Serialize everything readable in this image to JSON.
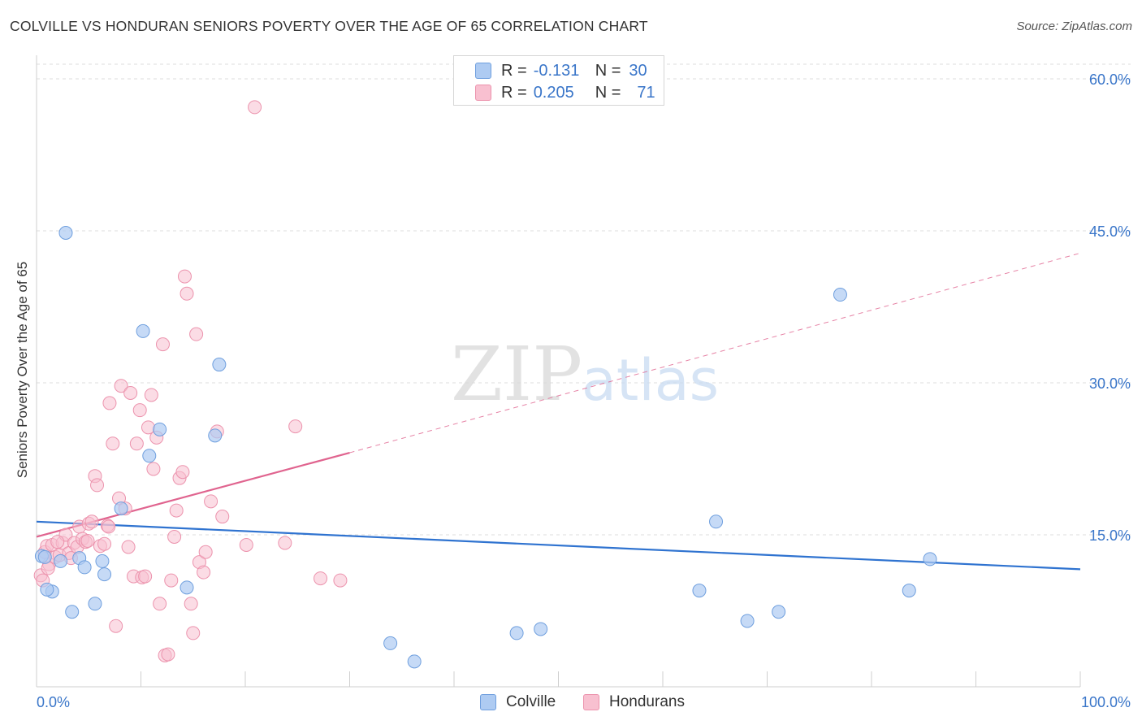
{
  "header": {
    "title": "COLVILLE VS HONDURAN SENIORS POVERTY OVER THE AGE OF 65 CORRELATION CHART",
    "source": "Source: ZipAtlas.com"
  },
  "legend": {
    "rows": [
      {
        "r_label": "R =",
        "r_value": "-0.131",
        "n_label": "N =",
        "n_value": "30"
      },
      {
        "r_label": "R =",
        "r_value": "0.205",
        "n_label": "N =",
        "n_value": "71"
      }
    ]
  },
  "bottom_legend": {
    "items": [
      {
        "label": "Colville"
      },
      {
        "label": "Hondurans"
      }
    ]
  },
  "watermark": {
    "part1": "ZIP",
    "part2": "atlas"
  },
  "colors": {
    "colville_fill": "#aecbf2",
    "colville_stroke": "#6f9fde",
    "colville_line": "#2f73d0",
    "hondurans_fill": "#f8c0d0",
    "hondurans_stroke": "#ec93ad",
    "hondurans_line": "#e0648f",
    "tick_text": "#3a76c9"
  },
  "chart_data": {
    "type": "scatter",
    "title": "COLVILLE VS HONDURAN SENIORS POVERTY OVER THE AGE OF 65 CORRELATION CHART",
    "xlabel": "",
    "ylabel": "Seniors Poverty Over the Age of 65",
    "xlim": [
      0,
      100
    ],
    "ylim": [
      0,
      60
    ],
    "x_tick_labels": [
      "0.0%",
      "100.0%"
    ],
    "y_ticks": [
      15,
      30,
      45,
      60
    ],
    "y_tick_labels": [
      "15.0%",
      "30.0%",
      "45.0%",
      "60.0%"
    ],
    "grid": true,
    "legend_position": "top-center",
    "series": [
      {
        "name": "Colville",
        "R": -0.131,
        "N": 30,
        "trend": {
          "x": [
            0,
            100
          ],
          "y": [
            16.3,
            11.6
          ],
          "dashed_extension": false
        },
        "points": [
          [
            0.5,
            12.9
          ],
          [
            2.8,
            44.8
          ],
          [
            1.5,
            9.4
          ],
          [
            2.3,
            12.4
          ],
          [
            3.4,
            7.4
          ],
          [
            4.1,
            12.7
          ],
          [
            5.6,
            8.2
          ],
          [
            6.3,
            12.4
          ],
          [
            4.6,
            11.8
          ],
          [
            6.5,
            11.1
          ],
          [
            8.1,
            17.6
          ],
          [
            10.2,
            35.1
          ],
          [
            10.8,
            22.8
          ],
          [
            11.8,
            25.4
          ],
          [
            14.4,
            9.8
          ],
          [
            17.1,
            24.8
          ],
          [
            17.5,
            31.8
          ],
          [
            33.9,
            4.3
          ],
          [
            36.2,
            2.5
          ],
          [
            46.0,
            5.3
          ],
          [
            48.3,
            5.7
          ],
          [
            63.5,
            9.5
          ],
          [
            65.1,
            16.3
          ],
          [
            68.1,
            6.5
          ],
          [
            71.1,
            7.4
          ],
          [
            77.0,
            38.7
          ],
          [
            83.6,
            9.5
          ],
          [
            85.6,
            12.6
          ],
          [
            0.8,
            12.8
          ],
          [
            1.0,
            9.6
          ]
        ]
      },
      {
        "name": "Hondurans",
        "R": 0.205,
        "N": 71,
        "trend": {
          "x": [
            0,
            30
          ],
          "y": [
            14.8,
            23.1
          ],
          "dashed_to": [
            100,
            42.8
          ]
        },
        "points": [
          [
            0.4,
            11.0
          ],
          [
            0.6,
            10.5
          ],
          [
            0.8,
            13.3
          ],
          [
            1.0,
            13.9
          ],
          [
            1.2,
            12.1
          ],
          [
            1.5,
            14.0
          ],
          [
            1.8,
            12.8
          ],
          [
            2.2,
            13.0
          ],
          [
            2.5,
            14.2
          ],
          [
            2.8,
            15.0
          ],
          [
            3.1,
            13.2
          ],
          [
            3.3,
            12.7
          ],
          [
            3.6,
            14.2
          ],
          [
            3.9,
            13.8
          ],
          [
            4.1,
            15.8
          ],
          [
            4.4,
            14.6
          ],
          [
            4.7,
            14.3
          ],
          [
            5.0,
            16.1
          ],
          [
            5.3,
            16.3
          ],
          [
            5.6,
            20.8
          ],
          [
            5.8,
            19.9
          ],
          [
            6.1,
            13.9
          ],
          [
            6.5,
            14.1
          ],
          [
            6.8,
            15.9
          ],
          [
            7.0,
            28.0
          ],
          [
            7.3,
            24.0
          ],
          [
            7.6,
            6.0
          ],
          [
            7.9,
            18.6
          ],
          [
            8.1,
            29.7
          ],
          [
            8.5,
            17.6
          ],
          [
            8.8,
            13.8
          ],
          [
            9.0,
            29.0
          ],
          [
            9.3,
            10.9
          ],
          [
            9.6,
            24.0
          ],
          [
            9.9,
            27.3
          ],
          [
            10.1,
            10.8
          ],
          [
            10.4,
            10.9
          ],
          [
            10.7,
            25.6
          ],
          [
            11.0,
            28.8
          ],
          [
            11.2,
            21.5
          ],
          [
            11.5,
            24.6
          ],
          [
            11.8,
            8.2
          ],
          [
            12.1,
            33.8
          ],
          [
            12.3,
            3.1
          ],
          [
            12.6,
            3.2
          ],
          [
            12.9,
            10.5
          ],
          [
            13.2,
            14.8
          ],
          [
            13.4,
            17.4
          ],
          [
            13.7,
            20.6
          ],
          [
            14.0,
            21.2
          ],
          [
            14.2,
            40.5
          ],
          [
            14.4,
            38.8
          ],
          [
            14.8,
            8.2
          ],
          [
            15.0,
            5.3
          ],
          [
            15.3,
            34.8
          ],
          [
            15.6,
            12.3
          ],
          [
            16.0,
            11.3
          ],
          [
            16.2,
            13.3
          ],
          [
            16.7,
            18.3
          ],
          [
            17.3,
            25.2
          ],
          [
            17.8,
            16.8
          ],
          [
            20.1,
            14.0
          ],
          [
            20.9,
            57.2
          ],
          [
            23.8,
            14.2
          ],
          [
            24.8,
            25.7
          ],
          [
            27.2,
            10.7
          ],
          [
            29.1,
            10.5
          ],
          [
            2.0,
            14.3
          ],
          [
            4.9,
            14.4
          ],
          [
            1.1,
            11.7
          ],
          [
            6.9,
            15.8
          ]
        ]
      }
    ]
  }
}
